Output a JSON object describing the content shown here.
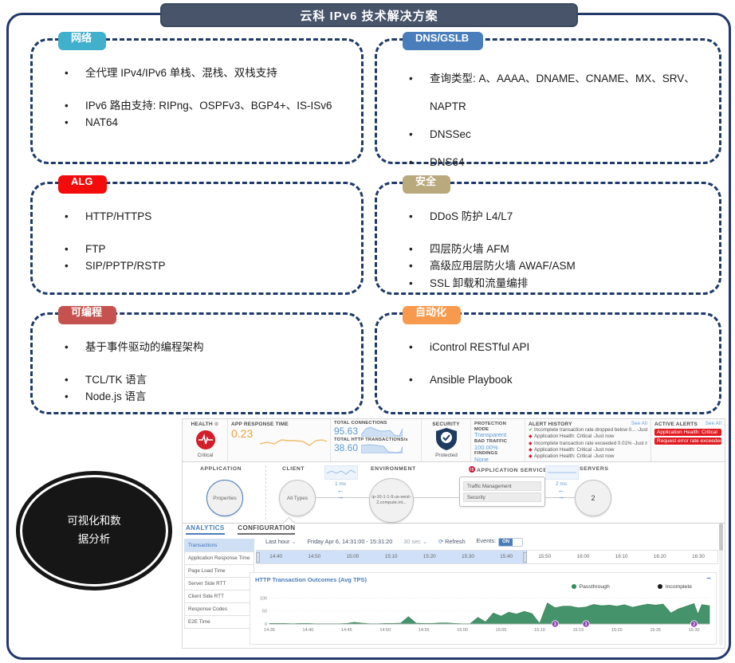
{
  "page": {
    "title": "云科 IPv6 技术解决方案"
  },
  "colors": {
    "frame": "#23386b",
    "banner": "#47546a",
    "box_border": "#1f3a68",
    "alert_red": "#e11b22",
    "value_blue": "#5b9bd5",
    "value_orange": "#e8a33d",
    "chart_green": "#3c8e63",
    "event_purple": "#8e44ad"
  },
  "boxes": [
    {
      "label": "网络",
      "color": "#41b0cd",
      "items": [
        "全代理 IPv4/IPv6 单栈、混栈、双栈支持",
        "IPv6 路由支持: RIPng、OSPFv3、BGP4+、IS-ISv6",
        "NAT64"
      ]
    },
    {
      "label": "DNS/GSLB",
      "color": "#4a7ebb",
      "items": [
        "查询类型: A、AAAA、DNAME、CNAME、MX、SRV、NAPTR",
        "DNSSec",
        "DNS64"
      ]
    },
    {
      "label": "ALG",
      "color": "#f40b0b",
      "items": [
        "HTTP/HTTPS",
        "FTP",
        "SIP/PPTP/RSTP"
      ]
    },
    {
      "label": "安全",
      "color": "#b9a97d",
      "items": [
        "DDoS 防护 L4/L7",
        "四层防火墙 AFM",
        "高级应用层防火墙 AWAF/ASM",
        "SSL 卸载和流量编排"
      ]
    },
    {
      "label": "可编程",
      "color": "#c5524e",
      "items": [
        "基于事件驱动的编程架构",
        "TCL/TK 语言",
        "Node.js 语言"
      ]
    },
    {
      "label": "自动化",
      "color": "#f79a4d",
      "items": [
        "iControl RESTful API",
        "Ansible Playbook"
      ]
    }
  ],
  "ellipse": {
    "line1": "可视化和数",
    "line2": "据分析"
  },
  "dashboard": {
    "health": {
      "label": "HEALTH",
      "status": "Critical"
    },
    "app_response": {
      "label": "APP RESPONSE TIME",
      "value": "0.23"
    },
    "connections": {
      "label": "TOTAL CONNECTIONS",
      "value": "95.63"
    },
    "transactions": {
      "label": "TOTAL HTTP TRANSACTIONS/s",
      "value": "38.60"
    },
    "security": {
      "label": "SECURITY",
      "status": "Protected"
    },
    "protection": {
      "mode_label": "PROTECTION MODE",
      "mode": "Transparent",
      "bad_label": "BAD TRAFFIC",
      "bad": "100.00%",
      "findings_label": "FINDINGS",
      "findings": "None"
    },
    "alert_history": {
      "title": "ALERT HISTORY",
      "see_all": "See All",
      "items": [
        {
          "icon": "check",
          "text": "Incomplete transaction rate dropped below 0... -Just now"
        },
        {
          "icon": "alert",
          "text": "Application Health: Critical -Just now"
        },
        {
          "icon": "alert",
          "text": "Incomplete transaction rate exceeded 0.01% -Just now"
        },
        {
          "icon": "alert",
          "text": "Application Health: Critical -Just now"
        },
        {
          "icon": "alert",
          "text": "Application Health: Critical -Just now"
        }
      ]
    },
    "active_alerts": {
      "title": "ACTIVE ALERTS",
      "see_all": "See All",
      "items": [
        "Application Health: Critical",
        "Request error rate exceeded 0.05%"
      ]
    },
    "map": {
      "application_label": "APPLICATION",
      "application_node": "Properties",
      "client_label": "CLIENT",
      "client_node": "All Types",
      "latency1": "1 ms",
      "environment_label": "ENVIRONMENT",
      "environment_node": "ip-10-1-1-9.us-west-2.compute.int...",
      "services_label": "APPLICATION SERVICES",
      "services": [
        "Traffic Management",
        "Security"
      ],
      "latency2": "2 ms",
      "servers_label": "SERVERS",
      "servers_node": "2"
    },
    "tabs": [
      "ANALYTICS",
      "CONFIGURATION"
    ],
    "sidebar": [
      "Transactions",
      "Application Response Time",
      "Page Load Time",
      "Server Side RTT",
      "Client Side RTT",
      "Response Codes",
      "E2E Time"
    ],
    "controls": {
      "range": "Last hour",
      "datetime": "Friday Apr 6, 14:31:00 - 15:31:20",
      "interval": "30 sec",
      "refresh": "Refresh",
      "events_label": "Events:",
      "events_state": "ON"
    },
    "timeline": {
      "ticks": [
        "14:40",
        "14:50",
        "15:00",
        "15:10",
        "15:20",
        "15:30",
        "15:40",
        "15:50",
        "16:00",
        "16:10",
        "16:20",
        "16:30"
      ]
    }
  },
  "chart_data": {
    "type": "area",
    "title": "HTTP Transaction Outcomes (Avg TPS)",
    "xlabel": "",
    "ylabel": "Avg TPS",
    "x_start_time": "14:35",
    "x_tick_labels": [
      "14:35",
      "14:40",
      "14:45",
      "14:50",
      "14:55",
      "15:00",
      "15:05",
      "15:10",
      "15:15",
      "15:20",
      "15:25",
      "15:30"
    ],
    "y_ticks": [
      0,
      50,
      100
    ],
    "ylim": [
      0,
      110
    ],
    "xlim_minutes": [
      0,
      57
    ],
    "grid": true,
    "legend_position": "top-right",
    "legend": [
      {
        "name": "Passthrough",
        "color": "#2e8e5c"
      },
      {
        "name": "Incomplete",
        "color": "#1a1a1a"
      }
    ],
    "series": [
      {
        "name": "Passthrough",
        "color": "#3c8e63",
        "x_minutes": [
          0,
          1,
          2,
          3,
          4,
          5,
          6,
          7,
          8,
          9,
          10,
          11,
          12,
          13,
          14,
          15,
          16,
          17,
          18,
          19,
          20,
          21,
          22,
          23,
          24,
          25,
          26,
          27,
          28,
          29,
          30,
          31,
          32,
          33,
          34,
          35,
          36,
          37,
          38,
          39,
          40,
          41,
          42,
          43,
          44,
          45,
          46,
          47,
          48,
          49,
          50,
          51,
          52,
          53,
          54,
          55,
          55.5,
          56,
          57
        ],
        "values": [
          2,
          2,
          2,
          1,
          2,
          2,
          1,
          1,
          1,
          1,
          2,
          6,
          3,
          1,
          1,
          2,
          2,
          3,
          28,
          3,
          2,
          2,
          4,
          4,
          2,
          1,
          1,
          25,
          8,
          42,
          30,
          45,
          38,
          48,
          40,
          2,
          80,
          62,
          68,
          68,
          62,
          65,
          75,
          70,
          72,
          68,
          74,
          64,
          70,
          76,
          72,
          76,
          42,
          58,
          68,
          78,
          38,
          74,
          70
        ]
      }
    ],
    "event_markers": [
      {
        "time": "15:12",
        "count": 3
      },
      {
        "time": "15:16",
        "count": 3
      },
      {
        "time": "15:30",
        "count": 2
      }
    ]
  }
}
